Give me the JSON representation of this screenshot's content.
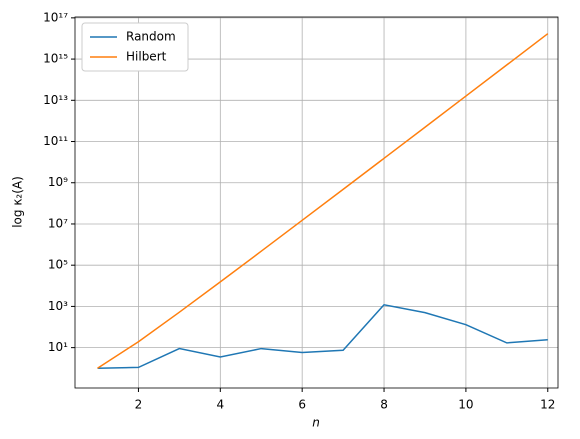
{
  "chart_data": {
    "type": "line",
    "x_label": "n",
    "y_label": "log κ₂(A)",
    "x": [
      1,
      2,
      3,
      4,
      5,
      6,
      7,
      8,
      9,
      10,
      11,
      12
    ],
    "series": [
      {
        "name": "Random",
        "color": "#1f77b4",
        "values": [
          1,
          1.1,
          9,
          3.5,
          9,
          5.8,
          7.5,
          1200,
          500,
          130,
          17,
          24
        ]
      },
      {
        "name": "Hilbert",
        "color": "#ff7f0e",
        "values": [
          1,
          19.28,
          524,
          15514,
          477000,
          15000000,
          475000000,
          15300000000,
          493000000000,
          16000000000000,
          522000000000000,
          17000000000000000
        ]
      }
    ],
    "xlim": [
      0.45,
      12.25
    ],
    "xticks": [
      2,
      4,
      6,
      8,
      10,
      12
    ],
    "ylim": [
      0.11,
      110000000000000000
    ],
    "log_y": true,
    "yticks": [
      {
        "value": 10,
        "label": "10¹"
      },
      {
        "value": 1000,
        "label": "10³"
      },
      {
        "value": 100000,
        "label": "10⁵"
      },
      {
        "value": 10000000,
        "label": "10⁷"
      },
      {
        "value": 1000000000,
        "label": "10⁹"
      },
      {
        "value": 100000000000,
        "label": "10¹¹"
      },
      {
        "value": 10000000000000,
        "label": "10¹³"
      },
      {
        "value": 1000000000000000,
        "label": "10¹⁵"
      },
      {
        "value": 100000000000000000,
        "label": "10¹⁷"
      }
    ],
    "grid": true,
    "legend": "upper-left"
  }
}
